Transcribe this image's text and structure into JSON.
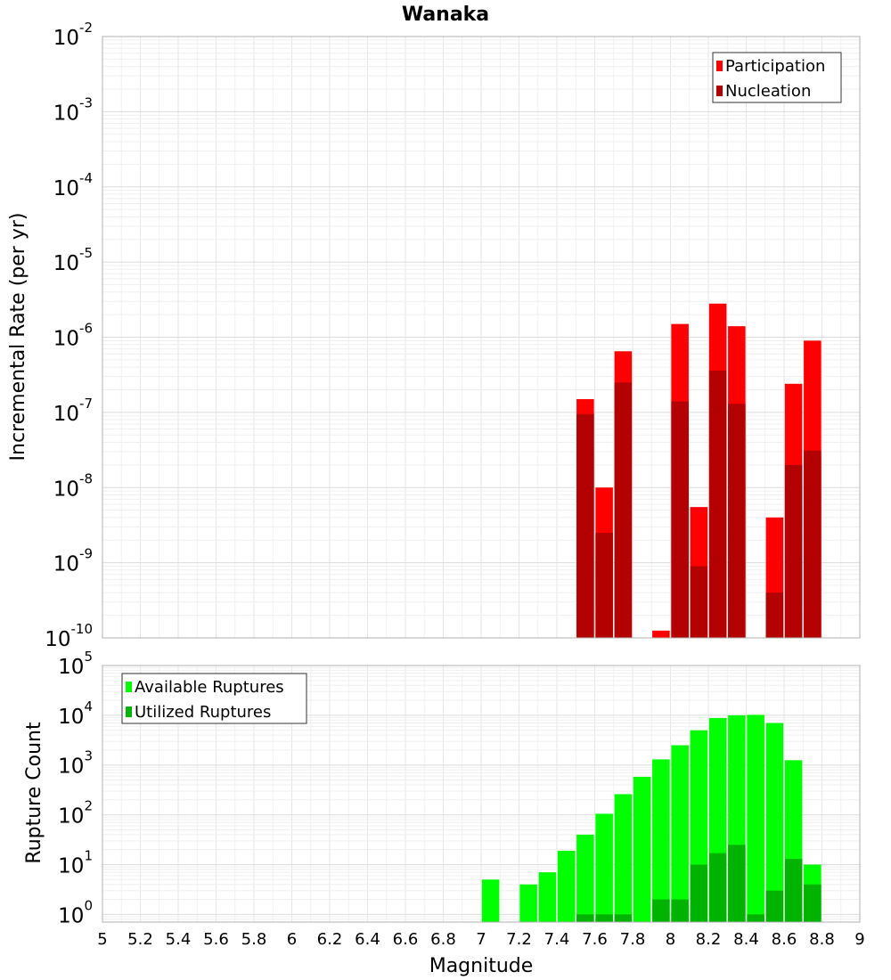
{
  "chart_data": [
    {
      "type": "bar",
      "title": "Wanaka",
      "ylabel": "Incremental Rate (per yr)",
      "xlabel": "",
      "yscale": "log",
      "ylim": [
        1e-10,
        0.01
      ],
      "xlim": [
        5,
        9
      ],
      "grid": true,
      "legend_position": "top-right",
      "y_tick_labels": [
        {
          "base": "10",
          "exp": "-10",
          "value": 1e-10
        },
        {
          "base": "10",
          "exp": "-9",
          "value": 1e-09
        },
        {
          "base": "10",
          "exp": "-8",
          "value": 1e-08
        },
        {
          "base": "10",
          "exp": "-7",
          "value": 1e-07
        },
        {
          "base": "10",
          "exp": "-6",
          "value": 1e-06
        },
        {
          "base": "10",
          "exp": "-5",
          "value": 1e-05
        },
        {
          "base": "10",
          "exp": "-4",
          "value": 0.0001
        },
        {
          "base": "10",
          "exp": "-3",
          "value": 0.001
        },
        {
          "base": "10",
          "exp": "-2",
          "value": 0.01
        }
      ],
      "series": [
        {
          "name": "Participation",
          "color": "#ff0000",
          "points": [
            {
              "x": 7.55,
              "y": 1.5e-07
            },
            {
              "x": 7.65,
              "y": 1e-08
            },
            {
              "x": 7.75,
              "y": 6.5e-07
            },
            {
              "x": 7.95,
              "y": 1.25e-10
            },
            {
              "x": 8.05,
              "y": 1.5e-06
            },
            {
              "x": 8.15,
              "y": 5.5e-09
            },
            {
              "x": 8.25,
              "y": 2.8e-06
            },
            {
              "x": 8.35,
              "y": 1.4e-06
            },
            {
              "x": 8.55,
              "y": 4e-09
            },
            {
              "x": 8.65,
              "y": 2.4e-07
            },
            {
              "x": 8.75,
              "y": 9e-07
            }
          ]
        },
        {
          "name": "Nucleation",
          "color": "#b30000",
          "points": [
            {
              "x": 7.55,
              "y": 9.5e-08
            },
            {
              "x": 7.65,
              "y": 2.5e-09
            },
            {
              "x": 7.75,
              "y": 2.5e-07
            },
            {
              "x": 8.05,
              "y": 1.4e-07
            },
            {
              "x": 8.15,
              "y": 9e-10
            },
            {
              "x": 8.25,
              "y": 3.6e-07
            },
            {
              "x": 8.35,
              "y": 1.3e-07
            },
            {
              "x": 8.55,
              "y": 4e-10
            },
            {
              "x": 8.65,
              "y": 2e-08
            },
            {
              "x": 8.75,
              "y": 3.1e-08
            }
          ]
        }
      ]
    },
    {
      "type": "bar",
      "title": "",
      "ylabel": "Rupture Count",
      "xlabel": "Magnitude",
      "yscale": "log",
      "ylim": [
        0.7,
        100000
      ],
      "xlim": [
        5,
        9
      ],
      "grid": true,
      "legend_position": "top-left",
      "x_tick_labels": [
        "5",
        "5.2",
        "5.4",
        "5.6",
        "5.8",
        "6",
        "6.2",
        "6.4",
        "6.6",
        "6.8",
        "7",
        "7.2",
        "7.4",
        "7.6",
        "7.8",
        "8",
        "8.2",
        "8.4",
        "8.6",
        "8.8",
        "9"
      ],
      "y_tick_labels": [
        {
          "base": "10",
          "exp": "0",
          "value": 1
        },
        {
          "base": "10",
          "exp": "1",
          "value": 10
        },
        {
          "base": "10",
          "exp": "2",
          "value": 100
        },
        {
          "base": "10",
          "exp": "3",
          "value": 1000
        },
        {
          "base": "10",
          "exp": "4",
          "value": 10000
        },
        {
          "base": "10",
          "exp": "5",
          "value": 100000
        }
      ],
      "series": [
        {
          "name": "Available Ruptures",
          "color": "#00ff00",
          "points": [
            {
              "x": 7.05,
              "y": 5
            },
            {
              "x": 7.25,
              "y": 4
            },
            {
              "x": 7.35,
              "y": 7
            },
            {
              "x": 7.45,
              "y": 19
            },
            {
              "x": 7.55,
              "y": 40
            },
            {
              "x": 7.65,
              "y": 105
            },
            {
              "x": 7.75,
              "y": 260
            },
            {
              "x": 7.85,
              "y": 580
            },
            {
              "x": 7.95,
              "y": 1300
            },
            {
              "x": 8.05,
              "y": 2500
            },
            {
              "x": 8.15,
              "y": 5000
            },
            {
              "x": 8.25,
              "y": 8800
            },
            {
              "x": 8.35,
              "y": 10000
            },
            {
              "x": 8.45,
              "y": 10200
            },
            {
              "x": 8.55,
              "y": 7000
            },
            {
              "x": 8.65,
              "y": 1250
            },
            {
              "x": 8.75,
              "y": 10
            }
          ]
        },
        {
          "name": "Utilized Ruptures",
          "color": "#00b300",
          "points": [
            {
              "x": 7.55,
              "y": 1
            },
            {
              "x": 7.65,
              "y": 1
            },
            {
              "x": 7.75,
              "y": 1
            },
            {
              "x": 7.95,
              "y": 2
            },
            {
              "x": 8.05,
              "y": 2
            },
            {
              "x": 8.15,
              "y": 10
            },
            {
              "x": 8.25,
              "y": 17
            },
            {
              "x": 8.35,
              "y": 25
            },
            {
              "x": 8.45,
              "y": 1
            },
            {
              "x": 8.55,
              "y": 3
            },
            {
              "x": 8.65,
              "y": 13
            },
            {
              "x": 8.75,
              "y": 4
            }
          ]
        }
      ]
    }
  ]
}
